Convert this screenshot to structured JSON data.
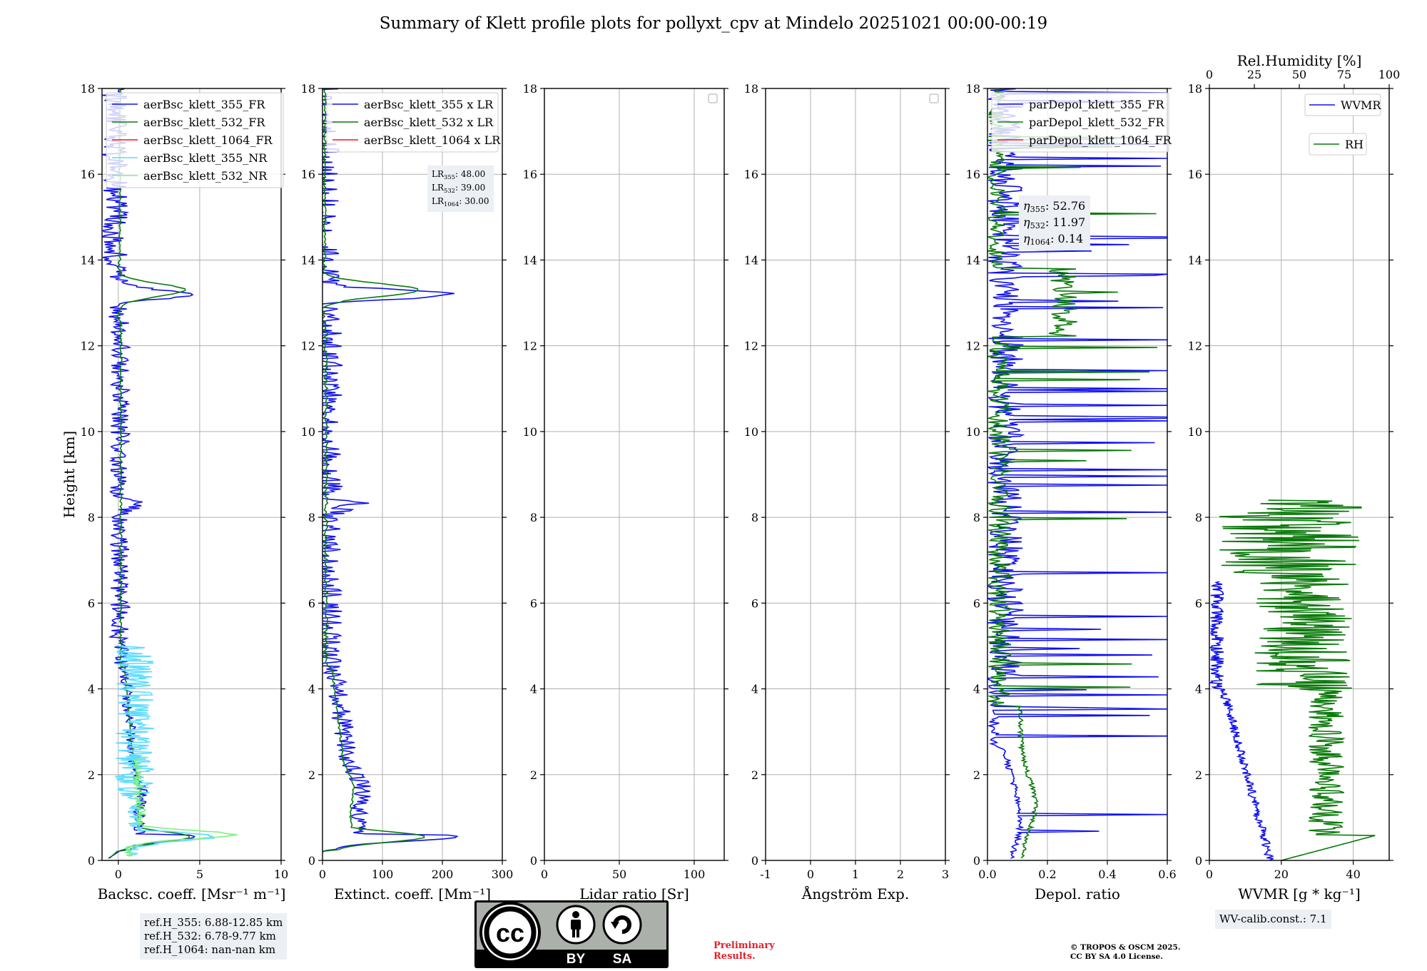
{
  "title": "Summary of Klett profile plots for pollyxt_cpv at Mindelo 20251021 00:00-00:19",
  "colors": {
    "blue": "#1010ee",
    "green": "#0a7a0a",
    "red": "#ff1010",
    "cyan": "#5fdcff",
    "lightgreen": "#7ef07e",
    "grid": "#b0b0b0"
  },
  "chart_data": [
    {
      "type": "line",
      "xlabel": "Backsc. coeff. [Msr⁻¹ m⁻¹]",
      "ylabel": "Height [km]",
      "xlim": [
        -1,
        10
      ],
      "ylim": [
        0,
        18
      ],
      "xticks": [
        0,
        5,
        10
      ],
      "yticks": [
        0,
        2,
        4,
        6,
        8,
        10,
        12,
        14,
        16,
        18
      ],
      "legend": [
        "aerBsc_klett_355_FR",
        "aerBsc_klett_532_FR",
        "aerBsc_klett_1064_FR",
        "aerBsc_klett_355_NR",
        "aerBsc_klett_532_NR"
      ],
      "series": [
        {
          "name": "aerBsc_klett_355_FR",
          "color": "blue",
          "profile": "bsc355"
        },
        {
          "name": "aerBsc_klett_532_FR",
          "color": "green",
          "profile": "bsc532"
        },
        {
          "name": "aerBsc_klett_355_NR",
          "color": "cyan",
          "profile": "nr355"
        },
        {
          "name": "aerBsc_klett_532_NR",
          "color": "lightgreen",
          "profile": "nr532"
        }
      ],
      "peaks": {
        "near_surface_km": 0.55,
        "aerosol_layer_km": 13.2,
        "bsc355_peak": 4.3,
        "bsc532_peak": 4.1
      }
    },
    {
      "type": "line",
      "xlabel": "Extinct. coeff. [Mm⁻¹]",
      "xlim": [
        0,
        300
      ],
      "ylim": [
        0,
        18
      ],
      "xticks": [
        0,
        100,
        200,
        300
      ],
      "yticks": [
        0,
        2,
        4,
        6,
        8,
        10,
        12,
        14,
        16,
        18
      ],
      "legend": [
        "aerBsc_klett_355 x LR",
        "aerBsc_klett_532 x LR",
        "aerBsc_klett_1064 x LR"
      ],
      "series": [
        {
          "name": "aerBsc_klett_355 x LR",
          "color": "blue",
          "profile": "ext355"
        },
        {
          "name": "aerBsc_klett_532 x LR",
          "color": "green",
          "profile": "ext532"
        }
      ],
      "annotation": [
        {
          "base": "LR",
          "sub": "355",
          "value": ": 48.00"
        },
        {
          "base": "LR",
          "sub": "532",
          "value": ": 39.00"
        },
        {
          "base": "LR",
          "sub": "1064",
          "value": ": 30.00"
        }
      ]
    },
    {
      "type": "line",
      "xlabel": "Lidar ratio [Sr]",
      "xlim": [
        0,
        120
      ],
      "ylim": [
        0,
        18
      ],
      "xticks": [
        0,
        50,
        100
      ],
      "yticks": [
        0,
        2,
        4,
        6,
        8,
        10,
        12,
        14,
        16,
        18
      ],
      "series": []
    },
    {
      "type": "line",
      "xlabel": "Ångström Exp.",
      "xlim": [
        -1,
        3
      ],
      "ylim": [
        0,
        18
      ],
      "xticks": [
        -1,
        0,
        1,
        2,
        3
      ],
      "yticks": [
        0,
        2,
        4,
        6,
        8,
        10,
        12,
        14,
        16,
        18
      ],
      "series": []
    },
    {
      "type": "line",
      "xlabel": "Depol. ratio",
      "xlim": [
        0,
        0.6
      ],
      "ylim": [
        0,
        18
      ],
      "xticks": [
        0.0,
        0.2,
        0.4,
        0.6
      ],
      "yticks": [
        0,
        2,
        4,
        6,
        8,
        10,
        12,
        14,
        16,
        18
      ],
      "legend": [
        "parDepol_klett_355_FR",
        "parDepol_klett_532_FR",
        "parDepol_klett_1064_FR"
      ],
      "series": [
        {
          "name": "parDepol_klett_355_FR",
          "color": "blue",
          "profile": "dep355"
        },
        {
          "name": "parDepol_klett_532_FR",
          "color": "green",
          "profile": "dep532"
        }
      ],
      "annotation": [
        {
          "base": "η",
          "sub": "355",
          "value": ": 52.76"
        },
        {
          "base": "η",
          "sub": "532",
          "value": ": 11.97"
        },
        {
          "base": "η",
          "sub": "1064",
          "value": ": 0.14"
        }
      ]
    },
    {
      "type": "line",
      "xlabel": "WVMR [g * kg⁻¹]",
      "xlabel_top": "Rel.Humidity [%]",
      "xlim": [
        0,
        50
      ],
      "xlim_top": [
        0,
        100
      ],
      "ylim": [
        0,
        18
      ],
      "xticks": [
        0,
        20,
        40
      ],
      "xticks_top": [
        0,
        25,
        50,
        75,
        100
      ],
      "yticks": [
        0,
        2,
        4,
        6,
        8,
        10,
        12,
        14,
        16,
        18
      ],
      "legend": [
        "WVMR",
        "RH"
      ],
      "series": [
        {
          "name": "WVMR",
          "color": "blue",
          "profile": "wvmr"
        },
        {
          "name": "RH",
          "color": "green",
          "profile": "rh"
        }
      ]
    }
  ],
  "refbox": [
    "ref.H_355: 6.88-12.85 km",
    "ref.H_532: 6.78-9.77 km",
    "ref.H_1064: nan-nan km"
  ],
  "wvcalib": "WV-calib.const.: 7.1",
  "license": {
    "by": "BY",
    "sa": "SA",
    "cc": "cc"
  },
  "prelim": [
    "Preliminary",
    "Results."
  ],
  "copyright": [
    "© TROPOS & OSCM 2025.",
    "CC BY SA 4.0 License."
  ]
}
